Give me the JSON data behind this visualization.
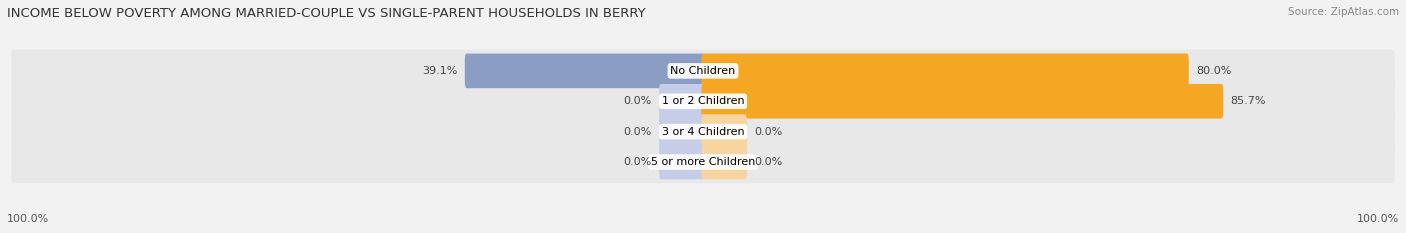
{
  "title": "INCOME BELOW POVERTY AMONG MARRIED-COUPLE VS SINGLE-PARENT HOUSEHOLDS IN BERRY",
  "source": "Source: ZipAtlas.com",
  "categories": [
    "No Children",
    "1 or 2 Children",
    "3 or 4 Children",
    "5 or more Children"
  ],
  "married_values": [
    39.1,
    0.0,
    0.0,
    0.0
  ],
  "single_values": [
    80.0,
    85.7,
    0.0,
    0.0
  ],
  "married_color": "#8b9dc3",
  "single_color": "#f5a623",
  "married_color_light": "#c5cde8",
  "single_color_light": "#f8d5a0",
  "bg_color": "#f2f2f2",
  "row_bg_color": "#e8e8e8",
  "title_fontsize": 9.5,
  "source_fontsize": 7.5,
  "label_fontsize": 8,
  "tick_fontsize": 8,
  "legend_fontsize": 8,
  "left_label": "100.0%",
  "right_label": "100.0%",
  "max_value": 100,
  "zero_bar_width": 7
}
